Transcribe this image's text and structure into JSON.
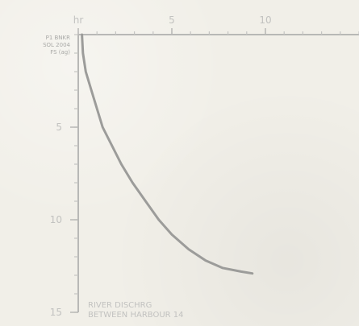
{
  "chart_data": {
    "type": "line",
    "title": "",
    "xlabel": "",
    "ylabel": "",
    "x_ticks": [
      {
        "value": 0,
        "label": "hr"
      },
      {
        "value": 5,
        "label": "5"
      },
      {
        "value": 10,
        "label": "10"
      }
    ],
    "y_ticks": [
      {
        "value": 5,
        "label": "5"
      },
      {
        "value": 10,
        "label": "10"
      },
      {
        "value": 15,
        "label": "15"
      }
    ],
    "xlim": [
      0,
      15
    ],
    "ylim": [
      0,
      15
    ],
    "x_direction": "left-to-right",
    "y_direction": "top-to-bottom",
    "annotations": {
      "top_left": [
        "P1 BNKR",
        "SOL 2004",
        "FS (ag)"
      ],
      "bottom": [
        "RIVER DISCHRG",
        "BETWEEN HARBOUR 14"
      ]
    },
    "series": [
      {
        "points": [
          {
            "x": 0.2,
            "y": 0.0
          },
          {
            "x": 0.25,
            "y": 1.0
          },
          {
            "x": 0.4,
            "y": 2.0
          },
          {
            "x": 0.7,
            "y": 3.0
          },
          {
            "x": 1.0,
            "y": 4.0
          },
          {
            "x": 1.3,
            "y": 5.0
          },
          {
            "x": 1.8,
            "y": 6.0
          },
          {
            "x": 2.3,
            "y": 7.0
          },
          {
            "x": 2.9,
            "y": 8.0
          },
          {
            "x": 3.6,
            "y": 9.0
          },
          {
            "x": 4.3,
            "y": 10.0
          },
          {
            "x": 5.0,
            "y": 10.8
          },
          {
            "x": 5.9,
            "y": 11.6
          },
          {
            "x": 6.8,
            "y": 12.2
          },
          {
            "x": 7.7,
            "y": 12.6
          },
          {
            "x": 8.7,
            "y": 12.8
          },
          {
            "x": 9.3,
            "y": 12.9
          }
        ]
      }
    ]
  }
}
